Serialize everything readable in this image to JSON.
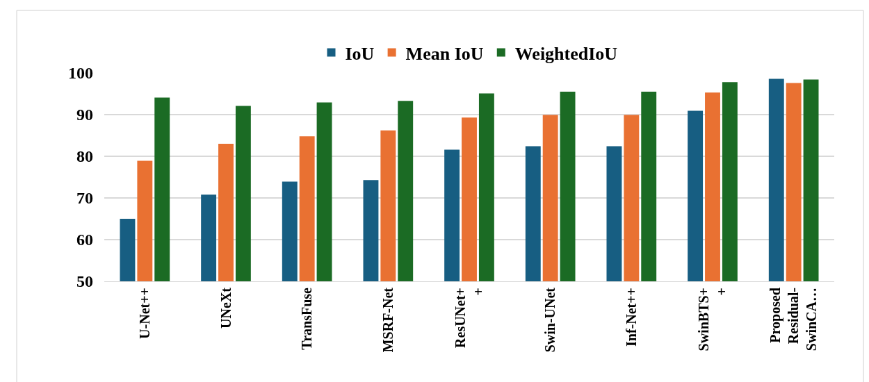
{
  "chart_data": {
    "type": "bar",
    "categories": [
      "U-Net++",
      "UNeXt",
      "TransFuse",
      "MSRF-Net",
      "ResUNet+\n+",
      "Swin-UNet",
      "Inf-Net++",
      "SwinBTS+\n+",
      "Proposed\nResidual-\nSwinCA…"
    ],
    "series": [
      {
        "name": "IoU",
        "color": "#175e82",
        "values": [
          65.0,
          70.8,
          73.9,
          74.3,
          81.6,
          82.4,
          82.4,
          90.9,
          98.6
        ]
      },
      {
        "name": "Mean IoU",
        "color": "#e97132",
        "values": [
          78.9,
          83.0,
          84.8,
          86.2,
          89.3,
          89.9,
          89.9,
          95.3,
          97.6
        ]
      },
      {
        "name": "WeightedIoU",
        "color": "#1b6b24",
        "values": [
          94.1,
          92.1,
          92.9,
          93.3,
          95.1,
          95.5,
          95.5,
          97.8,
          98.4
        ]
      }
    ],
    "ylim": [
      50,
      100
    ],
    "yticks": [
      50,
      60,
      70,
      80,
      90,
      100
    ],
    "grid": "y",
    "legend": "top"
  }
}
